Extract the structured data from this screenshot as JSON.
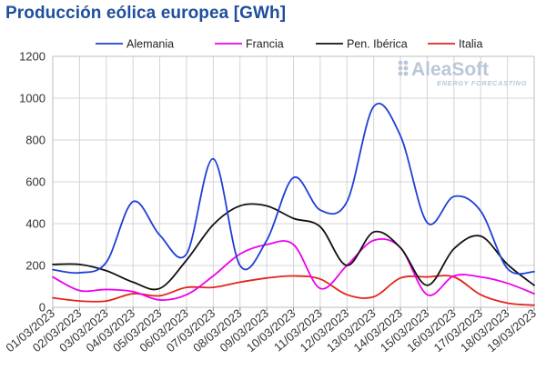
{
  "watermark": {
    "brand": "AleaSoft",
    "tagline": "ENERGY FORECASTING"
  },
  "colors": {
    "Alemania": "#1f3fd6",
    "Francia": "#ee00ee",
    "Pen. Ibérica": "#111111",
    "Italia": "#e3241b",
    "grid": "#d4d4d4",
    "title": "#1f4e9c"
  },
  "chart_data": {
    "type": "line",
    "title": "Producción eólica europea [GWh]",
    "xlabel": "",
    "ylabel": "",
    "ylim": [
      0,
      1200
    ],
    "yticks": [
      0,
      200,
      400,
      600,
      800,
      1000,
      1200
    ],
    "grid": true,
    "legend_position": "top",
    "categories": [
      "01/03/2023",
      "02/03/2023",
      "03/03/2023",
      "04/03/2023",
      "05/03/2023",
      "06/03/2023",
      "07/03/2023",
      "08/03/2023",
      "09/03/2023",
      "10/03/2023",
      "11/03/2023",
      "12/03/2023",
      "13/03/2023",
      "14/03/2023",
      "15/03/2023",
      "16/03/2023",
      "17/03/2023",
      "18/03/2023",
      "19/03/2023"
    ],
    "series": [
      {
        "name": "Alemania",
        "values": [
          180,
          165,
          215,
          505,
          345,
          255,
          710,
          200,
          320,
          620,
          465,
          505,
          960,
          820,
          405,
          530,
          460,
          185,
          170
        ]
      },
      {
        "name": "Francia",
        "values": [
          145,
          80,
          85,
          75,
          35,
          60,
          150,
          255,
          300,
          300,
          90,
          200,
          320,
          285,
          60,
          150,
          145,
          115,
          65
        ]
      },
      {
        "name": "Pen. Ibérica",
        "values": [
          205,
          205,
          175,
          120,
          90,
          225,
          395,
          485,
          485,
          425,
          385,
          200,
          360,
          285,
          105,
          280,
          340,
          205,
          105
        ]
      },
      {
        "name": "Italia",
        "values": [
          45,
          30,
          30,
          65,
          55,
          95,
          95,
          120,
          140,
          150,
          135,
          60,
          50,
          140,
          145,
          145,
          60,
          20,
          10
        ]
      }
    ]
  }
}
